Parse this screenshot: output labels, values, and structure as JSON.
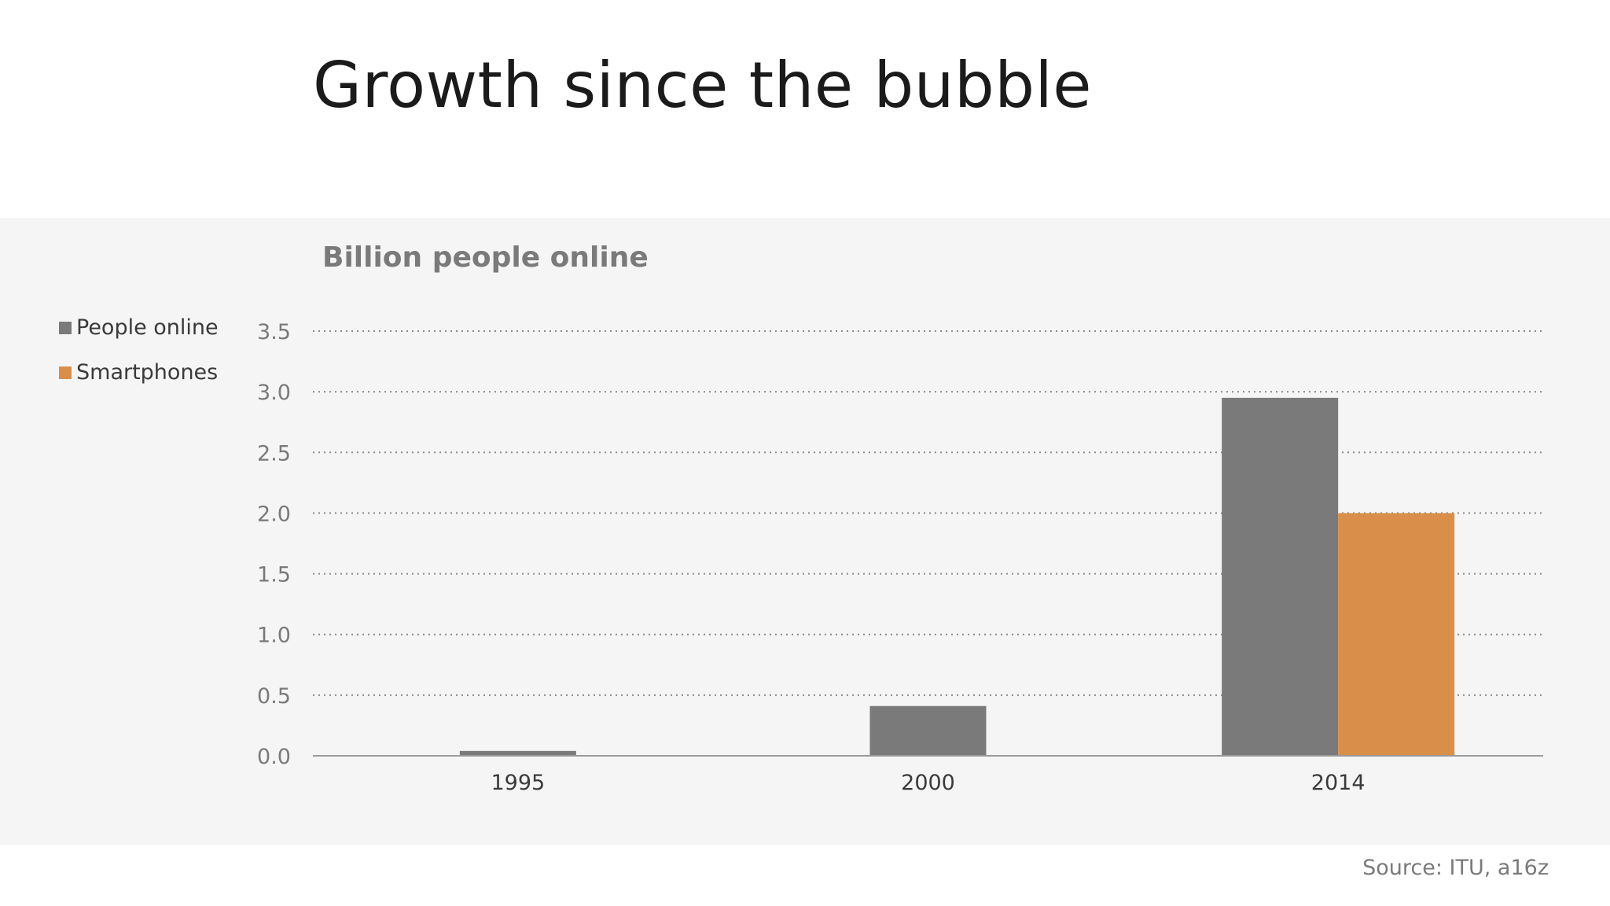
{
  "slide": {
    "title": "Growth since the bubble",
    "source": "Source: ITU, a16z"
  },
  "chart_data": {
    "type": "bar",
    "title": "Billion people online",
    "categories": [
      "1995",
      "2000",
      "2014"
    ],
    "series": [
      {
        "name": "People online",
        "color": "#7a7a7a",
        "values": [
          0.04,
          0.41,
          2.95
        ]
      },
      {
        "name": "Smartphones",
        "color": "#d98f4a",
        "values": [
          0,
          0,
          2.0
        ]
      }
    ],
    "ylim": [
      0,
      3.5
    ],
    "yticks": [
      "0.0",
      "0.5",
      "1.0",
      "1.5",
      "2.0",
      "2.5",
      "3.0",
      "3.5"
    ],
    "grid": true,
    "legend_position": "left"
  }
}
